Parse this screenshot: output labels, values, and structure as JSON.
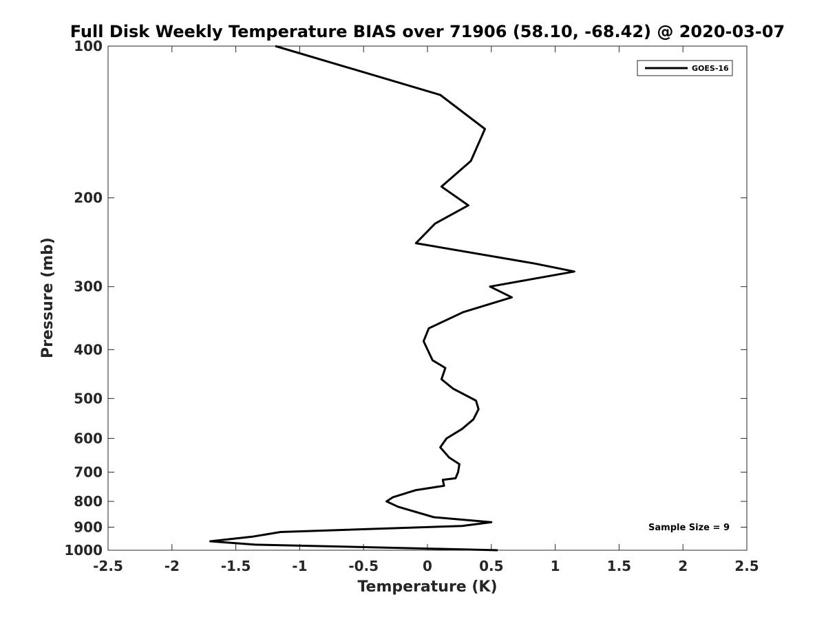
{
  "chart_data": {
    "type": "line",
    "title": "Full Disk Weekly Temperature BIAS over 71906 (58.10, -68.42) @ 2020-03-07",
    "xlabel": "Temperature (K)",
    "ylabel": "Pressure (mb)",
    "xlim": [
      -2.5,
      2.5
    ],
    "ylim": [
      100,
      1000
    ],
    "y_scale": "log",
    "y_reversed": true,
    "xticks": [
      -2.5,
      -2,
      -1.5,
      -1,
      -0.5,
      0,
      0.5,
      1,
      1.5,
      2,
      2.5
    ],
    "xtick_labels": [
      "-2.5",
      "-2",
      "-1.5",
      "-1",
      "-0.5",
      "0",
      "0.5",
      "1",
      "1.5",
      "2",
      "2.5"
    ],
    "yticks": [
      100,
      200,
      300,
      400,
      500,
      600,
      700,
      800,
      900,
      1000
    ],
    "ytick_labels": [
      "100",
      "200",
      "300",
      "400",
      "500",
      "600",
      "700",
      "800",
      "900",
      "1000"
    ],
    "grid": false,
    "legend_position": "top-right",
    "series": [
      {
        "name": "GOES-16",
        "color": "#000000",
        "x": [
          -1.19,
          0.1,
          0.45,
          0.34,
          0.11,
          0.32,
          0.06,
          -0.09,
          0.84,
          1.15,
          0.49,
          0.66,
          0.28,
          0.01,
          -0.03,
          0.04,
          0.14,
          0.11,
          0.2,
          0.38,
          0.4,
          0.36,
          0.27,
          0.15,
          0.1,
          0.17,
          0.25,
          0.24,
          0.22,
          0.12,
          0.13,
          -0.09,
          -0.27,
          -0.32,
          -0.23,
          0.05,
          0.5,
          0.27,
          -1.15,
          -1.37,
          -1.7,
          -1.35,
          -0.55,
          0.55
        ],
        "y": [
          100,
          125,
          146,
          169,
          190,
          207,
          225,
          246,
          270,
          280,
          300,
          315,
          337,
          363,
          385,
          420,
          435,
          458,
          478,
          505,
          525,
          550,
          575,
          600,
          625,
          655,
          675,
          700,
          720,
          725,
          745,
          760,
          785,
          800,
          820,
          860,
          880,
          895,
          920,
          940,
          960,
          975,
          985,
          1000
        ]
      }
    ],
    "annotations": [
      {
        "text": "Sample Size = 9",
        "position": "lower-right"
      }
    ]
  }
}
